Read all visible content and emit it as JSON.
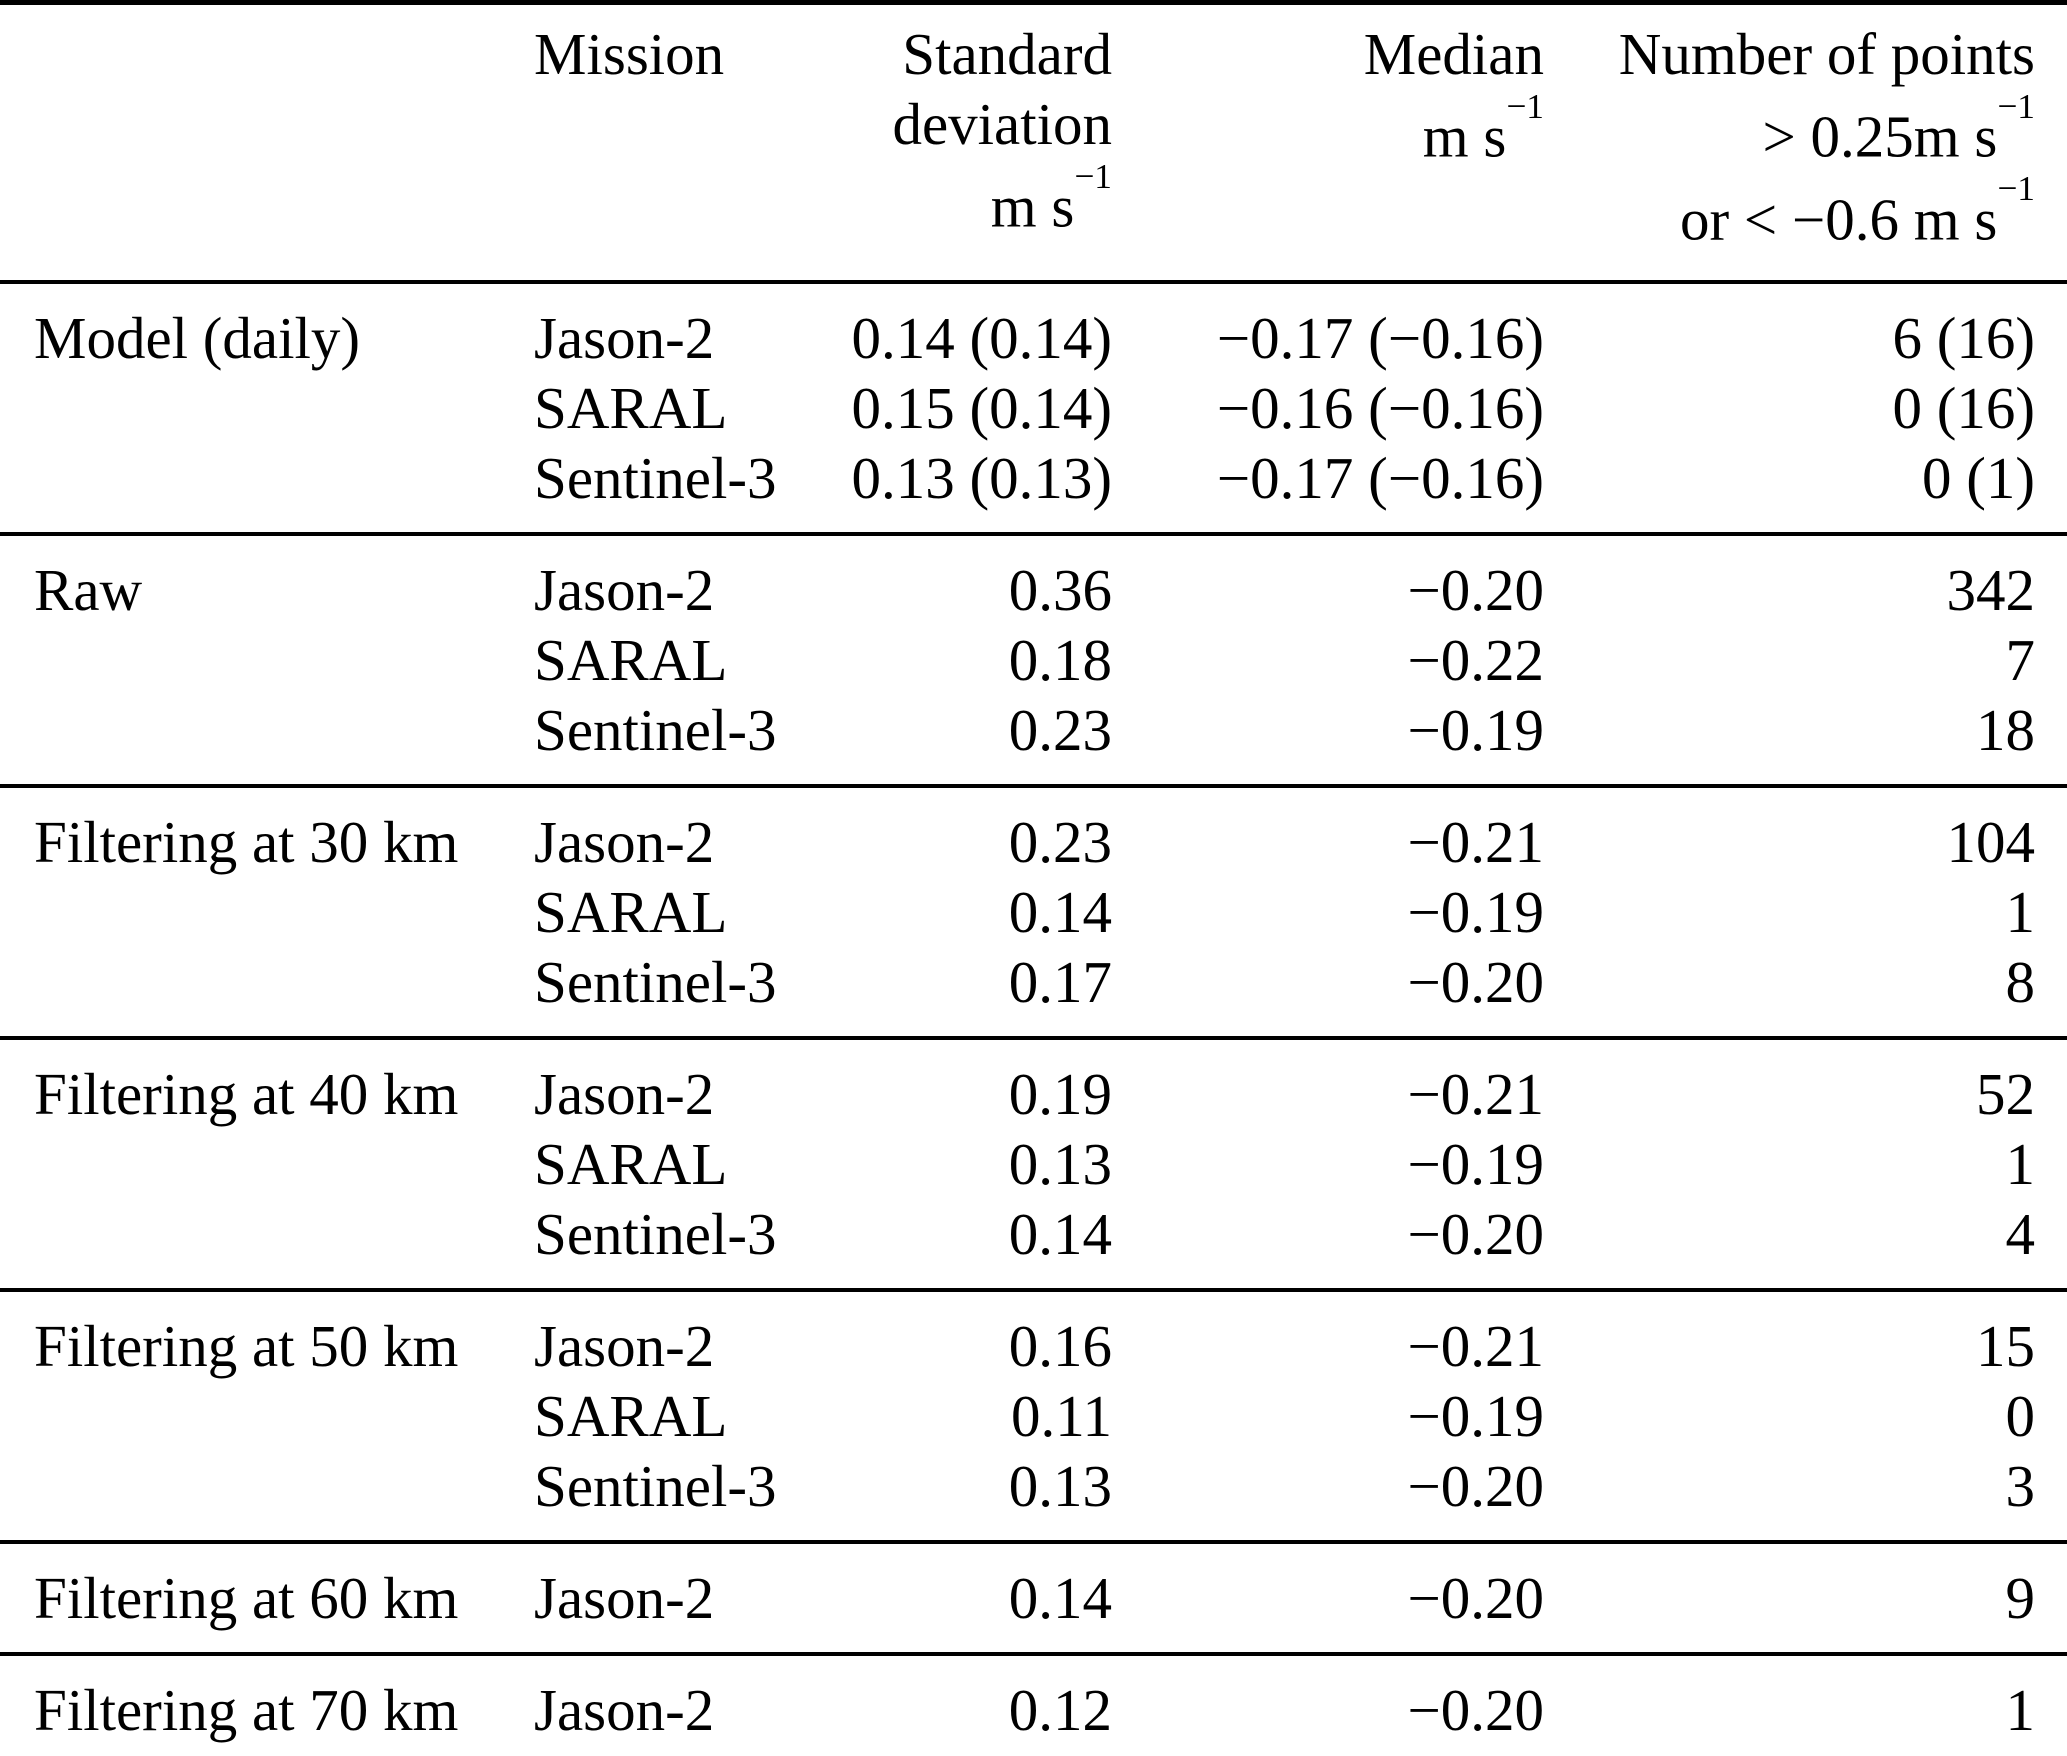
{
  "page": {
    "background_color": "#ffffff",
    "text_color": "#000000"
  },
  "table": {
    "columns": [
      {
        "id": "setup",
        "align": "left",
        "label_lines": []
      },
      {
        "id": "mission",
        "align": "left",
        "label_lines": [
          {
            "text": "Mission"
          }
        ]
      },
      {
        "id": "std",
        "align": "right",
        "label_lines": [
          {
            "text": "Standard"
          },
          {
            "text": "deviation"
          },
          {
            "text": "m s",
            "sup": "−1"
          }
        ]
      },
      {
        "id": "median",
        "align": "right",
        "label_lines": [
          {
            "text": "Median"
          },
          {
            "text": "m s",
            "sup": "−1"
          }
        ]
      },
      {
        "id": "points",
        "align": "right",
        "label_lines": [
          {
            "text": "Number of points"
          },
          {
            "text": "> 0.25m s",
            "sup": "−1"
          },
          {
            "text": "or < −0.6 m s",
            "sup": "−1"
          }
        ]
      }
    ],
    "groups": [
      {
        "label": "Model (daily)",
        "rows": [
          {
            "mission": "Jason-2",
            "std": "0.14 (0.14)",
            "median": "−0.17 (−0.16)",
            "points": "6 (16)"
          },
          {
            "mission": "SARAL",
            "std": "0.15 (0.14)",
            "median": "−0.16 (−0.16)",
            "points": "0 (16)"
          },
          {
            "mission": "Sentinel-3",
            "std": "0.13 (0.13)",
            "median": "−0.17 (−0.16)",
            "points": "0 (1)"
          }
        ]
      },
      {
        "label": "Raw",
        "rows": [
          {
            "mission": "Jason-2",
            "std": "0.36",
            "median": "−0.20",
            "points": "342"
          },
          {
            "mission": "SARAL",
            "std": "0.18",
            "median": "−0.22",
            "points": "7"
          },
          {
            "mission": "Sentinel-3",
            "std": "0.23",
            "median": "−0.19",
            "points": "18"
          }
        ]
      },
      {
        "label": "Filtering at 30 km",
        "rows": [
          {
            "mission": "Jason-2",
            "std": "0.23",
            "median": "−0.21",
            "points": "104"
          },
          {
            "mission": "SARAL",
            "std": "0.14",
            "median": "−0.19",
            "points": "1"
          },
          {
            "mission": "Sentinel-3",
            "std": "0.17",
            "median": "−0.20",
            "points": "8"
          }
        ]
      },
      {
        "label": "Filtering at 40 km",
        "rows": [
          {
            "mission": "Jason-2",
            "std": "0.19",
            "median": "−0.21",
            "points": "52"
          },
          {
            "mission": "SARAL",
            "std": "0.13",
            "median": "−0.19",
            "points": "1"
          },
          {
            "mission": "Sentinel-3",
            "std": "0.14",
            "median": "−0.20",
            "points": "4"
          }
        ]
      },
      {
        "label": "Filtering at 50 km",
        "rows": [
          {
            "mission": "Jason-2",
            "std": "0.16",
            "median": "−0.21",
            "points": "15"
          },
          {
            "mission": "SARAL",
            "std": "0.11",
            "median": "−0.19",
            "points": "0"
          },
          {
            "mission": "Sentinel-3",
            "std": "0.13",
            "median": "−0.20",
            "points": "3"
          }
        ]
      },
      {
        "label": "Filtering at 60 km",
        "rows": [
          {
            "mission": "Jason-2",
            "std": "0.14",
            "median": "−0.20",
            "points": "9"
          }
        ]
      },
      {
        "label": "Filtering at 70 km",
        "rows": [
          {
            "mission": "Jason-2",
            "std": "0.12",
            "median": "−0.20",
            "points": "1"
          }
        ]
      }
    ]
  }
}
